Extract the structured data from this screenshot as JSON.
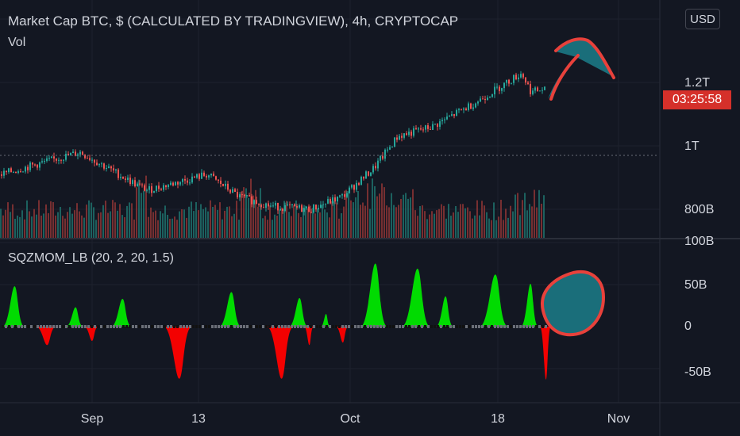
{
  "header": {
    "title": "Market Cap BTC, $ (CALCULATED BY TRADINGVIEW), 4h, CRYPTOCAP",
    "volume_label": "Vol",
    "indicator_title": "SQZMOM_LB (20, 2, 20, 1.5)"
  },
  "price_axis": {
    "currency_button": "USD",
    "top_label_partial": "1.",
    "labels": [
      "1.2T",
      "1T",
      "800B"
    ],
    "countdown": "03:25:58"
  },
  "indicator_axis": {
    "labels": [
      "100B",
      "50B",
      "0",
      "-50B"
    ]
  },
  "time_axis": {
    "labels": [
      "Sep",
      "13",
      "Oct",
      "18",
      "Nov"
    ]
  },
  "colors": {
    "background": "#131722",
    "up_candle": "#26a69a",
    "down_candle": "#ef5350",
    "mom_positive": "#00e600",
    "mom_negative": "#ff0000",
    "annotation_fill": "#1a6e7a",
    "annotation_stroke": "#e8413b",
    "countdown_bg": "#d5302a"
  },
  "chart_data": [
    {
      "type": "candlestick",
      "title": "Market Cap BTC, $ (CALCULATED BY TRADINGVIEW), 4h, CRYPTOCAP",
      "x_axis": [
        "Sep",
        "13",
        "Oct",
        "18",
        "Nov"
      ],
      "y_axis_ticks": [
        "800B",
        "1T",
        "1.2T"
      ],
      "price_path_keypoints": [
        {
          "x": "Aug 27",
          "y": 0.91
        },
        {
          "x": "Sep 3",
          "y": 0.94
        },
        {
          "x": "Sep 7",
          "y": 0.98
        },
        {
          "x": "Sep 8",
          "y": 0.87
        },
        {
          "x": "Sep 13",
          "y": 0.86
        },
        {
          "x": "Sep 16",
          "y": 0.91
        },
        {
          "x": "Sep 20",
          "y": 0.84
        },
        {
          "x": "Sep 24",
          "y": 0.81
        },
        {
          "x": "Sep 28",
          "y": 0.8
        },
        {
          "x": "Oct 1",
          "y": 0.84
        },
        {
          "x": "Oct 4",
          "y": 0.93
        },
        {
          "x": "Oct 7",
          "y": 1.03
        },
        {
          "x": "Oct 12",
          "y": 1.06
        },
        {
          "x": "Oct 15",
          "y": 1.14
        },
        {
          "x": "Oct 20",
          "y": 1.23
        },
        {
          "x": "Oct 21",
          "y": 1.17
        },
        {
          "x": "Oct 23",
          "y": 1.18
        }
      ],
      "horizontal_reference_line": 0.97,
      "countdown": "03:25:58"
    },
    {
      "type": "area",
      "title": "SQZMOM_LB (20, 2, 20, 1.5)",
      "y_axis_ticks": [
        "100B",
        "50B",
        "0",
        "-50B"
      ],
      "ylim": [
        -70,
        100
      ],
      "momentum_lobes": [
        {
          "peak": 48,
          "sign": "positive"
        },
        {
          "peak": -22,
          "sign": "negative"
        },
        {
          "peak": 23,
          "sign": "positive"
        },
        {
          "peak": -17,
          "sign": "negative"
        },
        {
          "peak": 33,
          "sign": "positive"
        },
        {
          "peak": -62,
          "sign": "negative"
        },
        {
          "peak": 41,
          "sign": "positive"
        },
        {
          "peak": -62,
          "sign": "negative"
        },
        {
          "peak": 34,
          "sign": "positive"
        },
        {
          "peak": -22,
          "sign": "negative"
        },
        {
          "peak": 15,
          "sign": "positive"
        },
        {
          "peak": -19,
          "sign": "negative"
        },
        {
          "peak": 75,
          "sign": "positive"
        },
        {
          "peak": 69,
          "sign": "positive"
        },
        {
          "peak": 36,
          "sign": "positive"
        },
        {
          "peak": 62,
          "sign": "positive"
        },
        {
          "peak": 51,
          "sign": "positive"
        },
        {
          "peak": -63,
          "sign": "negative"
        }
      ]
    }
  ]
}
